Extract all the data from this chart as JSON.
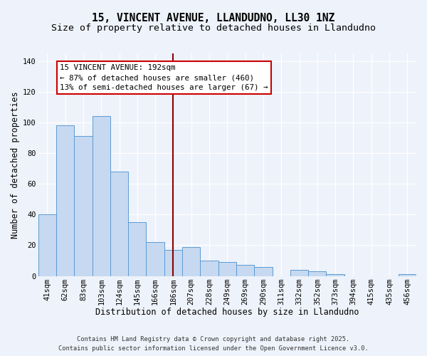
{
  "title": "15, VINCENT AVENUE, LLANDUDNO, LL30 1NZ",
  "subtitle": "Size of property relative to detached houses in Llandudno",
  "xlabel": "Distribution of detached houses by size in Llandudno",
  "ylabel": "Number of detached properties",
  "bar_labels": [
    "41sqm",
    "62sqm",
    "83sqm",
    "103sqm",
    "124sqm",
    "145sqm",
    "166sqm",
    "186sqm",
    "207sqm",
    "228sqm",
    "249sqm",
    "269sqm",
    "290sqm",
    "311sqm",
    "332sqm",
    "352sqm",
    "373sqm",
    "394sqm",
    "415sqm",
    "435sqm",
    "456sqm"
  ],
  "bar_values": [
    40,
    98,
    91,
    104,
    68,
    35,
    22,
    17,
    19,
    10,
    9,
    7,
    6,
    0,
    4,
    3,
    1,
    0,
    0,
    0,
    1
  ],
  "bar_color": "#c6d9f0",
  "bar_edge_color": "#5b9bd5",
  "vline_x": 7.5,
  "vline_color": "#8b0000",
  "annotation_title": "15 VINCENT AVENUE: 192sqm",
  "annotation_line1": "← 87% of detached houses are smaller (460)",
  "annotation_line2": "13% of semi-detached houses are larger (67) →",
  "annotation_box_color": "#ffffff",
  "annotation_box_edge": "#cc0000",
  "ylim": [
    0,
    145
  ],
  "yticks": [
    0,
    20,
    40,
    60,
    80,
    100,
    120,
    140
  ],
  "bg_color": "#eef2fa",
  "grid_color": "#ffffff",
  "footer1": "Contains HM Land Registry data © Crown copyright and database right 2025.",
  "footer2": "Contains public sector information licensed under the Open Government Licence v3.0.",
  "title_fontsize": 10.5,
  "subtitle_fontsize": 9.5,
  "xlabel_fontsize": 8.5,
  "ylabel_fontsize": 8.5,
  "tick_fontsize": 7.5,
  "annotation_fontsize": 7.8,
  "footer_fontsize": 6.2
}
